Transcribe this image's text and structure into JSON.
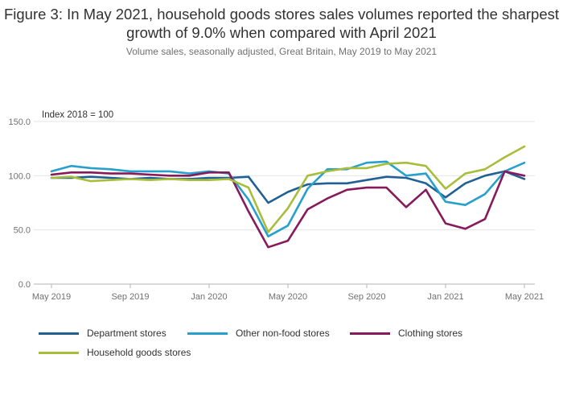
{
  "title": "Figure 3: In May 2021, household goods stores sales volumes reported the sharpest growth of 9.0% when compared with April 2021",
  "subtitle": "Volume sales, seasonally adjusted, Great Britain, May 2019 to May 2021",
  "chart_data": {
    "type": "line",
    "title": "Figure 3: In May 2021, household goods stores sales volumes reported the sharpest growth of 9.0% when compared with April 2021",
    "subtitle": "Volume sales, seasonally adjusted, Great Britain, May 2019 to May 2021",
    "ylabel": "Index 2018 = 100",
    "xlabel": "",
    "ylim": [
      0,
      150
    ],
    "yticks": [
      "0.0",
      "50.0",
      "100.0",
      "150.0"
    ],
    "ytick_values": [
      0,
      50,
      100,
      150
    ],
    "grid": true,
    "legend_position": "bottom",
    "x": [
      "May 2019",
      "Jun 2019",
      "Jul 2019",
      "Aug 2019",
      "Sep 2019",
      "Oct 2019",
      "Nov 2019",
      "Dec 2019",
      "Jan 2020",
      "Feb 2020",
      "Mar 2020",
      "Apr 2020",
      "May 2020",
      "Jun 2020",
      "Jul 2020",
      "Aug 2020",
      "Sep 2020",
      "Oct 2020",
      "Nov 2020",
      "Dec 2020",
      "Jan 2021",
      "Feb 2021",
      "Mar 2021",
      "Apr 2021",
      "May 2021"
    ],
    "xtick_labels": [
      {
        "index": 0,
        "label": "May 2019"
      },
      {
        "index": 4,
        "label": "Sep 2019"
      },
      {
        "index": 8,
        "label": "Jan 2020"
      },
      {
        "index": 12,
        "label": "May 2020"
      },
      {
        "index": 16,
        "label": "Sep 2020"
      },
      {
        "index": 20,
        "label": "Jan 2021"
      },
      {
        "index": 24,
        "label": "May 2021"
      }
    ],
    "series": [
      {
        "name": "Department stores",
        "color": "#206095",
        "values": [
          98,
          98,
          99,
          98,
          97,
          98,
          97,
          97,
          98,
          98,
          99,
          75,
          85,
          92,
          93,
          93,
          96,
          99,
          98,
          93,
          80,
          93,
          100,
          104,
          97
        ]
      },
      {
        "name": "Other non-food stores",
        "color": "#27a0cc",
        "values": [
          104,
          109,
          107,
          106,
          104,
          104,
          104,
          102,
          104,
          102,
          78,
          44,
          54,
          88,
          106,
          106,
          112,
          113,
          100,
          102,
          76,
          73,
          83,
          104,
          112
        ]
      },
      {
        "name": "Clothing stores",
        "color": "#871a5b",
        "values": [
          101,
          103,
          103,
          102,
          102,
          101,
          100,
          100,
          103,
          103,
          67,
          34,
          40,
          69,
          79,
          87,
          89,
          89,
          71,
          87,
          56,
          51,
          60,
          104,
          100
        ]
      },
      {
        "name": "Household goods stores",
        "color": "#a8bd3a",
        "values": [
          98,
          99,
          95,
          96,
          97,
          96,
          97,
          96,
          96,
          97,
          89,
          48,
          70,
          100,
          104,
          107,
          107,
          111,
          112,
          109,
          88,
          102,
          106,
          117,
          127
        ]
      }
    ]
  }
}
